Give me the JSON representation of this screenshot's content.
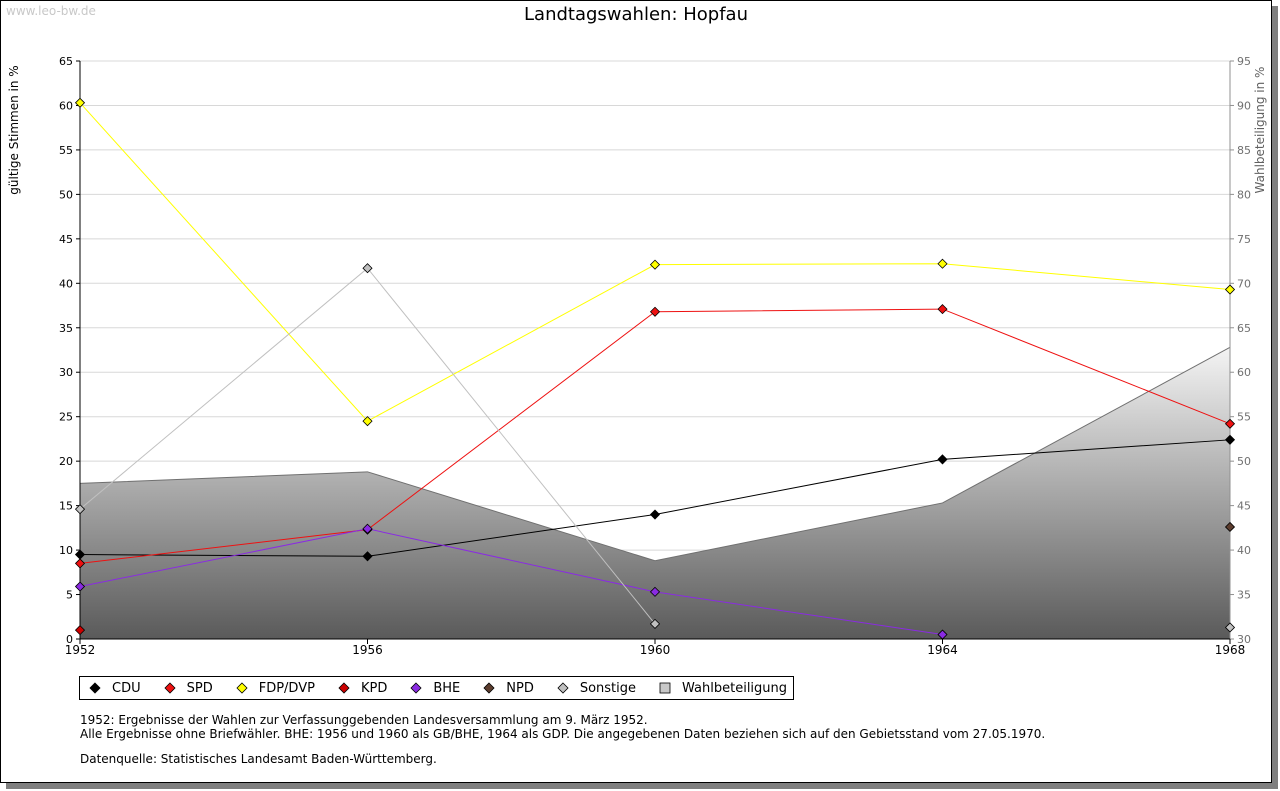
{
  "watermark": "www.leo-bw.de",
  "chart_data": {
    "type": "line",
    "title": "Landtagswahlen: Hopfau",
    "ylabel": "gültige Stimmen in %",
    "ylabel_right": "Wahlbeteiligung in %",
    "xlabel": "",
    "x": [
      1952,
      1956,
      1960,
      1964,
      1968
    ],
    "x_ticks": [
      "1952",
      "1956",
      "1960",
      "1964",
      "1968"
    ],
    "ylim": [
      0,
      65
    ],
    "y_ticks": [
      0,
      5,
      10,
      15,
      20,
      25,
      30,
      35,
      40,
      45,
      50,
      55,
      60,
      65
    ],
    "ylim_right": [
      30,
      95
    ],
    "y_ticks_right": [
      30,
      35,
      40,
      45,
      50,
      55,
      60,
      65,
      70,
      75,
      80,
      85,
      90,
      95
    ],
    "grid": true,
    "legend_position": "bottom",
    "series": [
      {
        "name": "CDU",
        "color": "#000000",
        "values": [
          9.5,
          9.3,
          14.0,
          20.2,
          22.4
        ]
      },
      {
        "name": "SPD",
        "color": "#ee1111",
        "values": [
          8.5,
          12.3,
          36.8,
          37.1,
          24.2
        ]
      },
      {
        "name": "FDP/DVP",
        "color": "#ffff00",
        "values": [
          60.3,
          24.5,
          42.1,
          42.2,
          39.3
        ]
      },
      {
        "name": "KPD",
        "color": "#cc0000",
        "values": [
          1.0,
          null,
          null,
          null,
          null
        ]
      },
      {
        "name": "BHE",
        "color": "#8a2be2",
        "values": [
          5.9,
          12.4,
          5.3,
          0.5,
          null
        ]
      },
      {
        "name": "NPD",
        "color": "#5c3d2e",
        "values": [
          null,
          null,
          null,
          null,
          12.6
        ]
      },
      {
        "name": "Sonstige",
        "color": "#c0c0c0",
        "values": [
          14.6,
          41.7,
          1.7,
          null,
          1.3
        ]
      }
    ],
    "turnout": {
      "name": "Wahlbeteiligung",
      "axis": "right",
      "values": [
        47.5,
        48.8,
        38.8,
        45.3,
        62.8
      ]
    }
  },
  "legend": {
    "cdu": "CDU",
    "spd": "SPD",
    "fdp": "FDP/DVP",
    "kpd": "KPD",
    "bhe": "BHE",
    "npd": "NPD",
    "sonstige": "Sonstige",
    "wahlbeteiligung": "Wahlbeteiligung"
  },
  "notes": {
    "line1": "1952: Ergebnisse der Wahlen zur Verfassunggebenden Landesversammlung am 9. März 1952.",
    "line2": "Alle Ergebnisse ohne Briefwähler. BHE: 1956 und 1960 als GB/BHE, 1964 als GDP. Die angegebenen Daten beziehen sich auf den Gebietsstand vom 27.05.1970.",
    "source": "Datenquelle: Statistisches Landesamt Baden-Württemberg."
  }
}
